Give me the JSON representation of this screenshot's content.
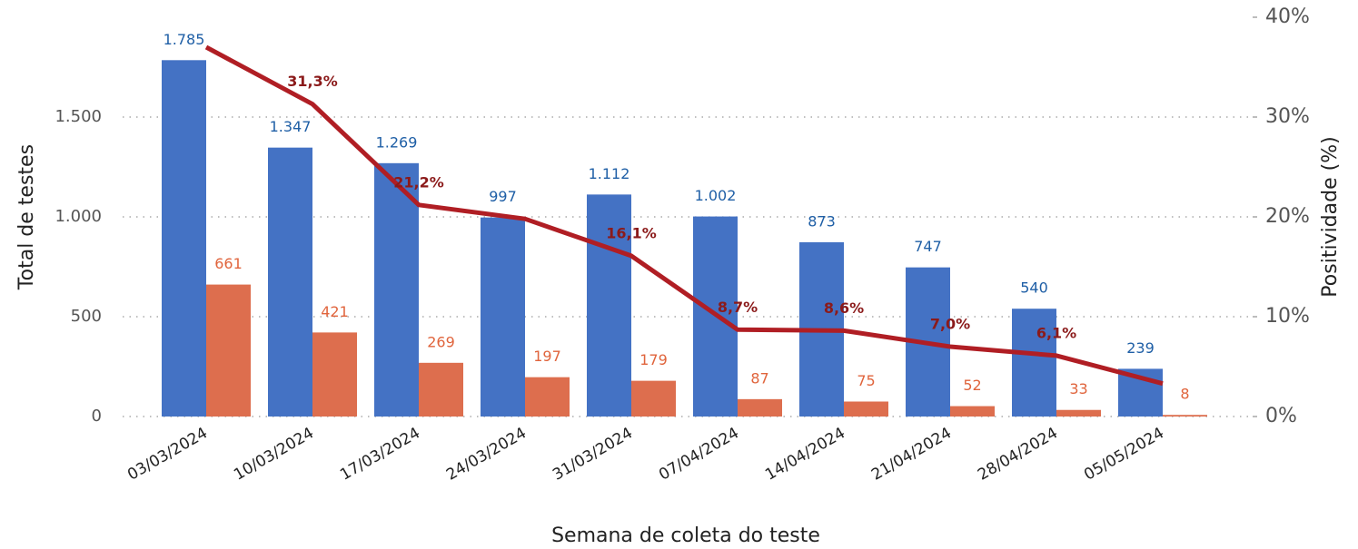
{
  "chart_data": {
    "type": "bar_line",
    "categories": [
      "03/03/2024",
      "10/03/2024",
      "17/03/2024",
      "24/03/2024",
      "31/03/2024",
      "07/04/2024",
      "14/04/2024",
      "21/04/2024",
      "28/04/2024",
      "05/05/2024"
    ],
    "series": [
      {
        "type": "bar",
        "color": "#4472c4",
        "label_color": "#1f5fa6",
        "values": [
          1785,
          1347,
          1269,
          997,
          1112,
          1002,
          873,
          747,
          540,
          239
        ],
        "value_labels": [
          "1.785",
          "1.347",
          "1.269",
          "997",
          "1.112",
          "1.002",
          "873",
          "747",
          "540",
          "239"
        ]
      },
      {
        "type": "bar",
        "color": "#dd6e4e",
        "label_color": "#e0643c",
        "values": [
          661,
          421,
          269,
          197,
          179,
          87,
          75,
          52,
          33,
          8
        ]
      },
      {
        "type": "line",
        "axis": "y2",
        "color": "#b01e24",
        "label_color": "#8b1a1a",
        "values": [
          37.0,
          31.3,
          21.2,
          19.8,
          16.1,
          8.7,
          8.6,
          7.0,
          6.1,
          3.3
        ],
        "value_labels": [
          null,
          "31,3%",
          "21,2%",
          null,
          "16,1%",
          "8,7%",
          "8,6%",
          "7,0%",
          "6,1%",
          null
        ]
      }
    ],
    "y_label": "Total de testes",
    "y2_label": "Positividade (%)",
    "x_label": "Semana de coleta do teste",
    "ylim": [
      0,
      2000
    ],
    "yticks": [
      0,
      500,
      {
        "value": 1000,
        "label": "1.000"
      },
      {
        "value": 1500,
        "label": "1.500"
      }
    ],
    "y2lim": [
      0,
      40
    ],
    "y2ticks": [
      {
        "value": 0,
        "label": "0%"
      },
      {
        "value": 10,
        "label": "10%"
      },
      {
        "value": 20,
        "label": "20%"
      },
      {
        "value": 30,
        "label": "30%"
      },
      {
        "value": 40,
        "label": "40%"
      }
    ],
    "grid": true
  }
}
